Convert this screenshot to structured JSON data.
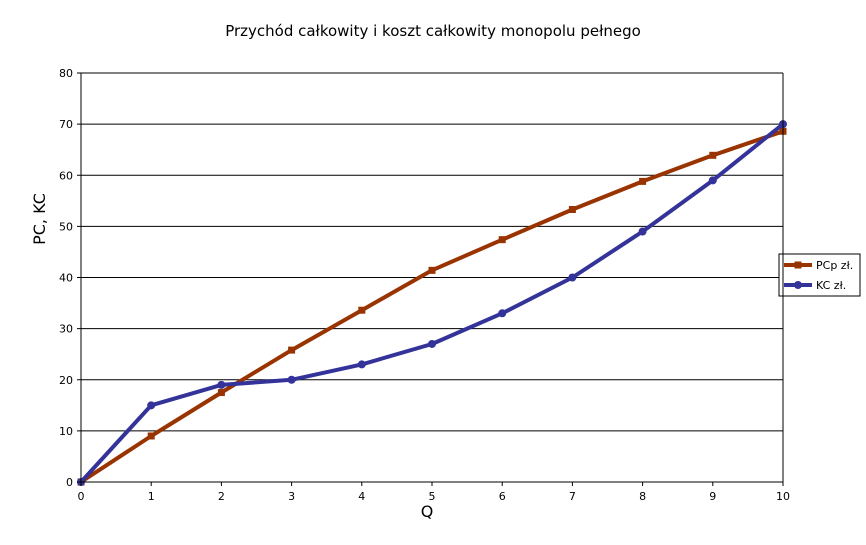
{
  "chart_data": {
    "type": "line",
    "title": "Przychód całkowity i koszt całkowity monopolu pełnego",
    "xlabel": "Q",
    "ylabel": "PC, KC",
    "x": [
      0,
      1,
      2,
      3,
      4,
      5,
      6,
      7,
      8,
      9,
      10
    ],
    "xlim": [
      0,
      10
    ],
    "ylim": [
      0,
      80
    ],
    "yticks": [
      0,
      10,
      20,
      30,
      40,
      50,
      60,
      70,
      80
    ],
    "grid": "horizontal",
    "legend_position": "right",
    "series": [
      {
        "name": "PCp zł.",
        "color": "#993300",
        "marker": "square",
        "values": [
          0,
          9,
          17.5,
          25.8,
          33.6,
          41.4,
          47.4,
          53.3,
          58.8,
          63.9,
          68.6
        ]
      },
      {
        "name": "KC zł.",
        "color": "#333399",
        "marker": "circle",
        "values": [
          0,
          15,
          19,
          20,
          23,
          27,
          33,
          40,
          49,
          59,
          70
        ]
      }
    ]
  }
}
